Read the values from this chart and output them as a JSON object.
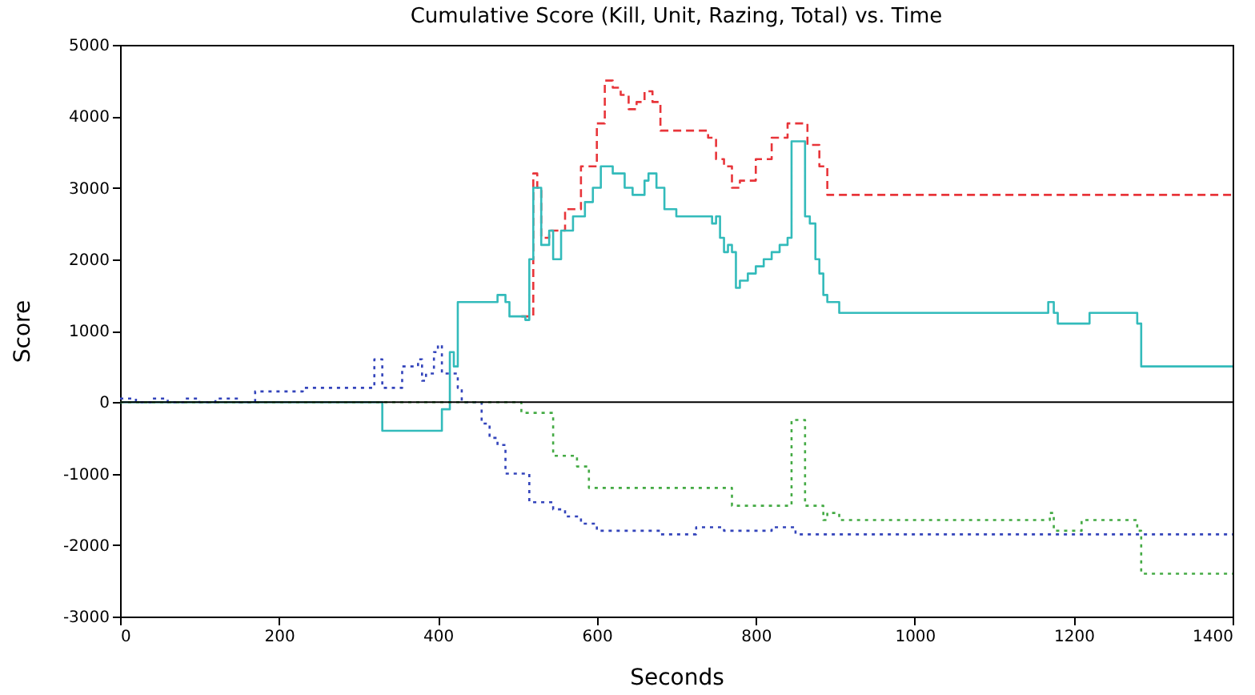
{
  "chart_data": {
    "type": "step",
    "title": "Cumulative Score (Kill, Unit, Razing, Total) vs. Time",
    "xlabel": "Seconds",
    "ylabel": "Score",
    "xlim": [
      0,
      1400
    ],
    "xticks": [
      0,
      200,
      400,
      600,
      800,
      1000,
      1200,
      1400
    ],
    "ylim": [
      -3000,
      5000
    ],
    "yticks": [
      -3000,
      -2000,
      -1000,
      0,
      1000,
      2000,
      3000,
      4000,
      5000
    ],
    "grid": false,
    "legend": false,
    "marker": "none",
    "ref_lines": [
      {
        "axis": "y",
        "value": 0,
        "color": "#000000",
        "line_style": "solid"
      }
    ],
    "series": [
      {
        "color": "#e8353a",
        "line_style": "dashed",
        "x": [
          505,
          520,
          525,
          530,
          540,
          560,
          580,
          600,
          610,
          620,
          630,
          640,
          650,
          660,
          670,
          680,
          700,
          720,
          740,
          750,
          760,
          770,
          780,
          800,
          820,
          840,
          855,
          865,
          880,
          890,
          1400
        ],
        "values": [
          1200,
          3200,
          3000,
          2300,
          2400,
          2700,
          3300,
          3900,
          4500,
          4400,
          4300,
          4100,
          4200,
          4350,
          4200,
          3800,
          3800,
          3800,
          3700,
          3400,
          3300,
          3000,
          3100,
          3400,
          3700,
          3900,
          3900,
          3600,
          3300,
          2900,
          2900
        ]
      },
      {
        "color": "#33bbbb",
        "line_style": "solid",
        "x": [
          0,
          330,
          405,
          415,
          420,
          425,
          475,
          485,
          490,
          510,
          515,
          520,
          530,
          540,
          545,
          555,
          570,
          585,
          595,
          605,
          620,
          635,
          645,
          660,
          665,
          675,
          685,
          700,
          740,
          745,
          750,
          755,
          760,
          765,
          770,
          775,
          780,
          790,
          800,
          810,
          820,
          830,
          840,
          845,
          860,
          862,
          868,
          875,
          880,
          885,
          890,
          905,
          1165,
          1168,
          1175,
          1180,
          1220,
          1275,
          1280,
          1285,
          1400
        ],
        "values": [
          0,
          -400,
          -100,
          700,
          500,
          1400,
          1500,
          1400,
          1200,
          1150,
          2000,
          3000,
          2200,
          2400,
          2000,
          2400,
          2600,
          2800,
          3000,
          3300,
          3200,
          3000,
          2900,
          3100,
          3200,
          3000,
          2700,
          2600,
          2600,
          2500,
          2600,
          2300,
          2100,
          2200,
          2100,
          1600,
          1700,
          1800,
          1900,
          2000,
          2100,
          2200,
          2300,
          3650,
          3650,
          2600,
          2500,
          2000,
          1800,
          1500,
          1400,
          1250,
          1250,
          1400,
          1250,
          1100,
          1250,
          1250,
          1100,
          500,
          500
        ]
      },
      {
        "color": "#3344bb",
        "line_style": "dotted",
        "x": [
          0,
          20,
          40,
          60,
          80,
          100,
          120,
          150,
          170,
          230,
          320,
          330,
          355,
          375,
          380,
          385,
          395,
          400,
          405,
          420,
          425,
          430,
          455,
          465,
          475,
          485,
          505,
          515,
          530,
          545,
          560,
          580,
          600,
          660,
          680,
          720,
          725,
          760,
          820,
          850,
          1400
        ],
        "values": [
          50,
          0,
          50,
          0,
          50,
          0,
          50,
          0,
          150,
          200,
          600,
          200,
          500,
          600,
          300,
          400,
          700,
          800,
          400,
          400,
          200,
          0,
          -300,
          -500,
          -600,
          -1000,
          -1000,
          -1400,
          -1400,
          -1500,
          -1600,
          -1700,
          -1800,
          -1800,
          -1850,
          -1850,
          -1750,
          -1800,
          -1750,
          -1850,
          -1850
        ]
      },
      {
        "color": "#44aa44",
        "line_style": "dotted",
        "x": [
          0,
          505,
          545,
          575,
          590,
          770,
          845,
          862,
          885,
          890,
          905,
          1165,
          1170,
          1175,
          1210,
          1280,
          1285,
          1400
        ],
        "values": [
          0,
          -150,
          -750,
          -900,
          -1200,
          -1450,
          -250,
          -1450,
          -1650,
          -1550,
          -1650,
          -1650,
          -1550,
          -1800,
          -1650,
          -1800,
          -2400,
          -2400
        ]
      }
    ]
  }
}
